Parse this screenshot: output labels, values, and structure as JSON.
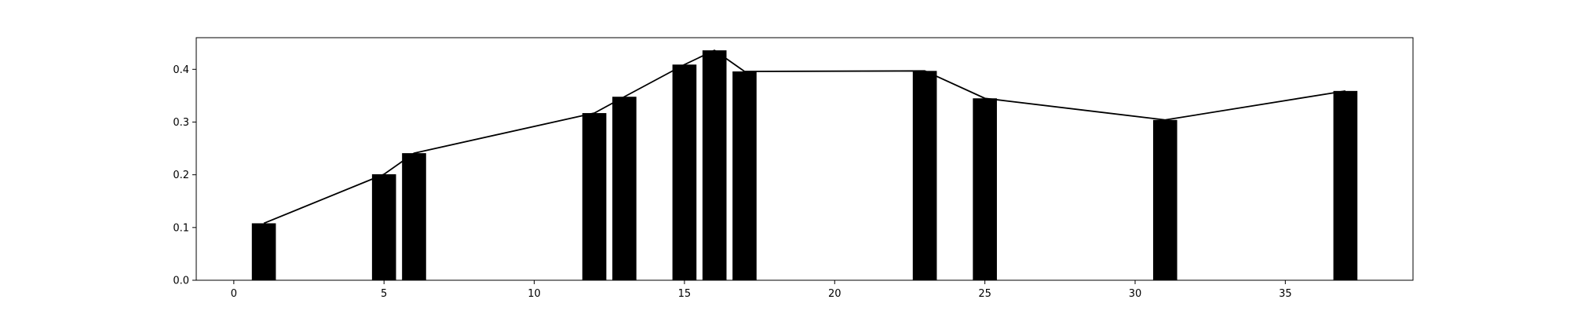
{
  "chart_data": {
    "type": "bar",
    "title": "",
    "xlabel": "",
    "ylabel": "",
    "xlim": [
      -1.25,
      39.25
    ],
    "ylim": [
      0,
      0.46
    ],
    "grid": false,
    "bar_width": 0.8,
    "x_ticks": [
      0,
      5,
      10,
      15,
      20,
      25,
      30,
      35
    ],
    "x_tick_labels": [
      "0",
      "5",
      "10",
      "15",
      "20",
      "25",
      "30",
      "35"
    ],
    "y_ticks": [
      0.0,
      0.1,
      0.2,
      0.3,
      0.4
    ],
    "y_tick_labels": [
      "0.0",
      "0.1",
      "0.2",
      "0.3",
      "0.4"
    ],
    "series": [
      {
        "kind": "bar",
        "x": [
          1,
          5,
          6,
          12,
          13,
          15,
          16,
          17,
          23,
          25,
          31,
          37
        ],
        "values": [
          0.108,
          0.201,
          0.241,
          0.317,
          0.348,
          0.409,
          0.436,
          0.396,
          0.397,
          0.345,
          0.304,
          0.359
        ],
        "color": "#000000"
      },
      {
        "kind": "line",
        "x": [
          1,
          5,
          6,
          12,
          13,
          15,
          16,
          17,
          23,
          25,
          31,
          37
        ],
        "values": [
          0.108,
          0.201,
          0.241,
          0.317,
          0.348,
          0.409,
          0.436,
          0.396,
          0.397,
          0.345,
          0.304,
          0.359
        ],
        "color": "#000000"
      }
    ]
  }
}
